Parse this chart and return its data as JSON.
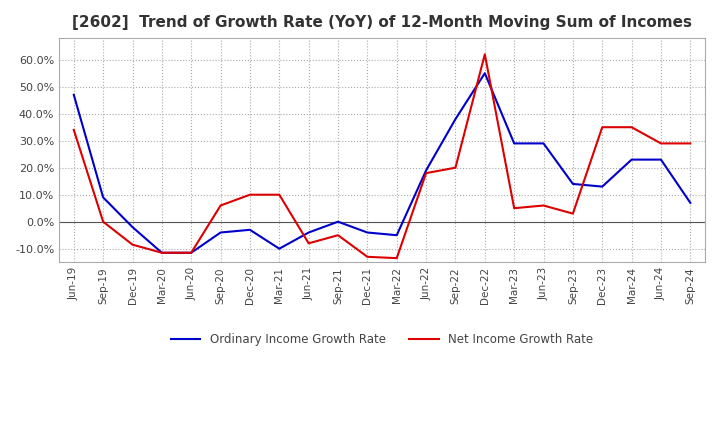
{
  "title": "[2602]  Trend of Growth Rate (YoY) of 12-Month Moving Sum of Incomes",
  "title_fontsize": 11,
  "ylim": [
    -0.15,
    0.68
  ],
  "yticks": [
    -0.1,
    0.0,
    0.1,
    0.2,
    0.3,
    0.4,
    0.5,
    0.6
  ],
  "background_color": "#ffffff",
  "grid_color": "#aaaaaa",
  "ordinary_color": "#0000cc",
  "net_color": "#dd0000",
  "legend_ordinary": "Ordinary Income Growth Rate",
  "legend_net": "Net Income Growth Rate",
  "x_labels": [
    "Jun-19",
    "Sep-19",
    "Dec-19",
    "Mar-20",
    "Jun-20",
    "Sep-20",
    "Dec-20",
    "Mar-21",
    "Jun-21",
    "Sep-21",
    "Dec-21",
    "Mar-22",
    "Jun-22",
    "Sep-22",
    "Dec-22",
    "Mar-23",
    "Jun-23",
    "Sep-23",
    "Dec-23",
    "Mar-24",
    "Jun-24",
    "Sep-24"
  ],
  "ordinary_income": [
    0.47,
    0.09,
    -0.02,
    -0.115,
    -0.115,
    -0.04,
    -0.03,
    -0.1,
    -0.04,
    0.0,
    -0.04,
    -0.05,
    0.19,
    0.38,
    0.55,
    0.29,
    0.29,
    0.14,
    0.13,
    0.23,
    0.23,
    0.07
  ],
  "net_income": [
    0.34,
    0.0,
    -0.085,
    -0.115,
    -0.115,
    0.06,
    0.1,
    0.1,
    -0.08,
    -0.05,
    -0.13,
    -0.135,
    0.18,
    0.2,
    0.62,
    0.05,
    0.06,
    0.03,
    0.35,
    0.35,
    0.29,
    0.29
  ]
}
